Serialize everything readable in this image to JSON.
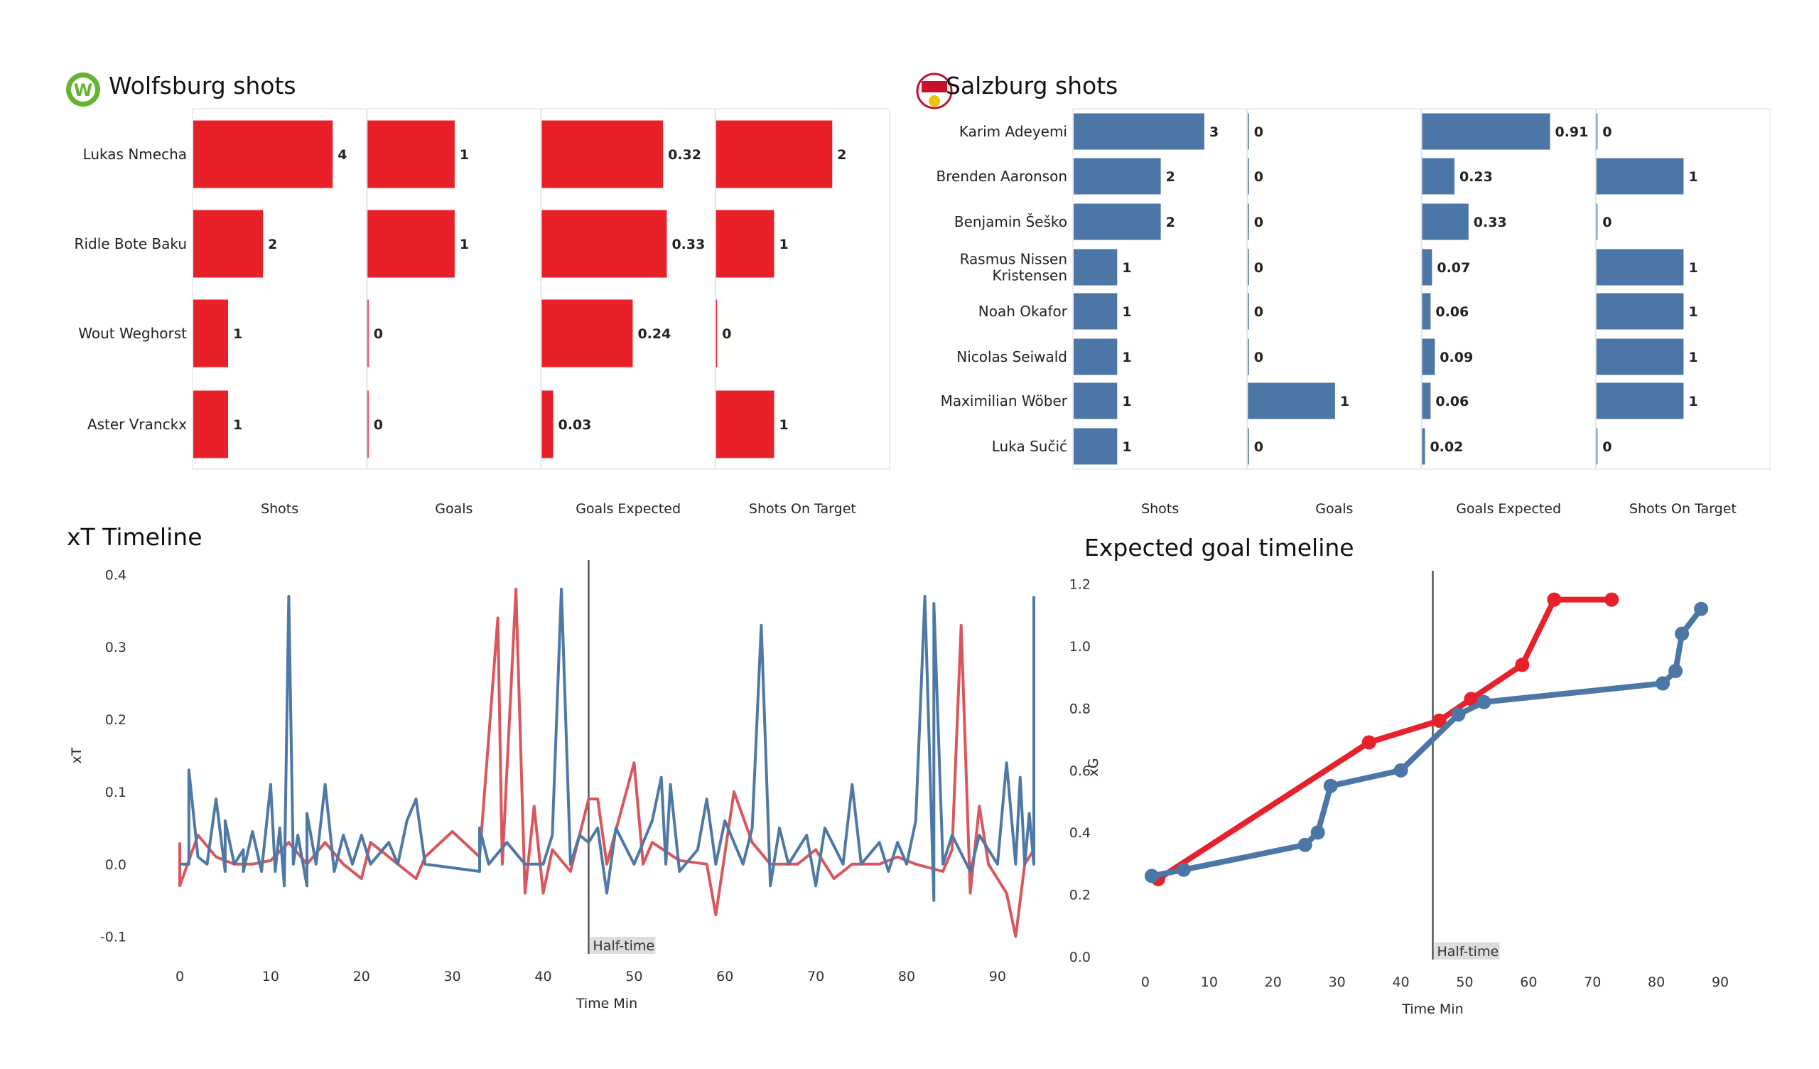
{
  "colors": {
    "wolfsburg": "#e8202a",
    "salzburg": "#4b76a6",
    "xt_red": "#d9575c",
    "xt_blue": "#4e78a6",
    "halftime_line": "#555555",
    "halftime_box": "#dddddd"
  },
  "icons": {
    "wolfsburg_logo": "wolfsburg-crest-icon",
    "salzburg_logo": "salzburg-crest-icon"
  },
  "chart_data": [
    {
      "type": "bar",
      "title": "Wolfsburg shots",
      "categories": [
        "Lukas Nmecha",
        "Ridle Bote Baku",
        "Wout Weghorst",
        "Aster Vranckx"
      ],
      "columns": [
        {
          "label": "Shots",
          "values": [
            4,
            2,
            1,
            1
          ],
          "xlim": [
            0,
            5
          ]
        },
        {
          "label": "Goals",
          "values": [
            1,
            1,
            0,
            0
          ],
          "xlim": [
            0,
            2
          ]
        },
        {
          "label": "Goals Expected",
          "values": [
            0.32,
            0.33,
            0.24,
            0.03
          ],
          "xlim": [
            0,
            0.46
          ]
        },
        {
          "label": "Shots On Target",
          "values": [
            2,
            1,
            0,
            1
          ],
          "xlim": [
            0,
            3
          ]
        }
      ],
      "value_labels": [
        [
          "4",
          "2",
          "1",
          "1"
        ],
        [
          "1",
          "1",
          "0",
          "0"
        ],
        [
          "0.32",
          "0.33",
          "0.24",
          "0.03"
        ],
        [
          "2",
          "1",
          "0",
          "1"
        ]
      ]
    },
    {
      "type": "bar",
      "title": "Salzburg shots",
      "categories": [
        "Karim Adeyemi",
        "Brenden  Aaronson",
        "Benjamin Šeško",
        "Rasmus Nissen\nKristensen",
        "Noah Okafor",
        "Nicolas Seiwald",
        "Maximilian Wöber",
        "Luka Sučić"
      ],
      "columns": [
        {
          "label": "Shots",
          "values": [
            3,
            2,
            2,
            1,
            1,
            1,
            1,
            1
          ],
          "xlim": [
            0,
            4
          ]
        },
        {
          "label": "Goals",
          "values": [
            0,
            0,
            0,
            0,
            0,
            0,
            1,
            0
          ],
          "xlim": [
            0,
            2
          ]
        },
        {
          "label": "Goals Expected",
          "values": [
            0.91,
            0.23,
            0.33,
            0.07,
            0.06,
            0.09,
            0.06,
            0.02
          ],
          "xlim": [
            0,
            1.24
          ]
        },
        {
          "label": "Shots On Target",
          "values": [
            0,
            1,
            0,
            1,
            1,
            1,
            1,
            0
          ],
          "xlim": [
            0,
            2
          ]
        }
      ],
      "value_labels": [
        [
          "3",
          "2",
          "2",
          "1",
          "1",
          "1",
          "1",
          "1"
        ],
        [
          "0",
          "0",
          "0",
          "0",
          "0",
          "0",
          "1",
          "0"
        ],
        [
          "0.91",
          "0.23",
          "0.33",
          "0.07",
          "0.06",
          "0.09",
          "0.06",
          "0.02"
        ],
        [
          "0",
          "1",
          "0",
          "1",
          "1",
          "1",
          "1",
          "0"
        ]
      ]
    },
    {
      "type": "line",
      "title": "xT Timeline",
      "xlabel": "Time Min",
      "ylabel": "xT",
      "xlim": [
        0,
        94
      ],
      "ylim": [
        -0.12,
        0.42
      ],
      "xticks": [
        "0",
        "10",
        "20",
        "30",
        "40",
        "50",
        "60",
        "70",
        "80",
        "90"
      ],
      "yticks": [
        "0.4",
        "0.3",
        "0.2",
        "0.1",
        "0.0",
        "-0.1"
      ],
      "annotation": {
        "x": 45,
        "label": "Half-time"
      },
      "series": [
        {
          "team": "wolfsburg",
          "points": [
            [
              0,
              0.03
            ],
            [
              0,
              -0.03
            ],
            [
              2,
              0.04
            ],
            [
              4,
              0.01
            ],
            [
              6,
              0.0
            ],
            [
              8,
              0.0
            ],
            [
              10,
              0.005
            ],
            [
              12,
              0.03
            ],
            [
              14,
              0.0
            ],
            [
              16,
              0.03
            ],
            [
              18,
              0.0
            ],
            [
              20,
              -0.02
            ],
            [
              21,
              0.03
            ],
            [
              23,
              0.01
            ],
            [
              26,
              -0.02
            ],
            [
              27,
              0.01
            ],
            [
              30,
              0.045
            ],
            [
              33,
              0.01
            ],
            [
              35,
              0.34
            ],
            [
              35.5,
              0.0
            ],
            [
              37,
              0.38
            ],
            [
              38,
              -0.04
            ],
            [
              39,
              0.08
            ],
            [
              40,
              -0.04
            ],
            [
              41,
              0.02
            ],
            [
              43,
              -0.01
            ],
            [
              45,
              0.09
            ],
            [
              46,
              0.09
            ],
            [
              47,
              0.0
            ],
            [
              50,
              0.14
            ],
            [
              51,
              0.0
            ],
            [
              52,
              0.03
            ],
            [
              55,
              0.005
            ],
            [
              58,
              0.0
            ],
            [
              59,
              -0.07
            ],
            [
              61,
              0.1
            ],
            [
              63,
              0.03
            ],
            [
              65,
              0.0
            ],
            [
              68,
              0.0
            ],
            [
              70,
              0.02
            ],
            [
              72,
              -0.02
            ],
            [
              74,
              0.0
            ],
            [
              77,
              0.0
            ],
            [
              79,
              0.01
            ],
            [
              81,
              0.0
            ],
            [
              84,
              -0.01
            ],
            [
              85,
              0.02
            ],
            [
              86,
              0.33
            ],
            [
              87,
              -0.04
            ],
            [
              88,
              0.08
            ],
            [
              89,
              0.0
            ],
            [
              91,
              -0.04
            ],
            [
              92,
              -0.1
            ],
            [
              93,
              0.0
            ],
            [
              94,
              0.02
            ]
          ]
        },
        {
          "team": "salzburg",
          "points": [
            [
              0,
              0.0
            ],
            [
              1,
              0.0
            ],
            [
              1,
              0.13
            ],
            [
              2,
              0.01
            ],
            [
              3,
              0.0
            ],
            [
              4,
              0.09
            ],
            [
              5,
              -0.01
            ],
            [
              5,
              0.06
            ],
            [
              6,
              0.0
            ],
            [
              7,
              0.02
            ],
            [
              7,
              -0.01
            ],
            [
              8,
              0.045
            ],
            [
              9,
              -0.01
            ],
            [
              10,
              0.11
            ],
            [
              10.5,
              -0.01
            ],
            [
              11,
              0.05
            ],
            [
              11.5,
              -0.03
            ],
            [
              12,
              0.37
            ],
            [
              12.5,
              0.0
            ],
            [
              13,
              0.04
            ],
            [
              14,
              -0.03
            ],
            [
              14,
              0.07
            ],
            [
              15,
              0.0
            ],
            [
              16,
              0.11
            ],
            [
              17,
              -0.01
            ],
            [
              18,
              0.04
            ],
            [
              19,
              0.0
            ],
            [
              20,
              0.04
            ],
            [
              21,
              0.0
            ],
            [
              23,
              0.03
            ],
            [
              24,
              0.0
            ],
            [
              25,
              0.06
            ],
            [
              26,
              0.09
            ],
            [
              27,
              0.0
            ],
            [
              33,
              -0.01
            ],
            [
              33,
              0.05
            ],
            [
              34,
              0.0
            ],
            [
              36,
              0.03
            ],
            [
              38,
              0.0
            ],
            [
              40,
              0.0
            ],
            [
              41,
              0.04
            ],
            [
              42,
              0.38
            ],
            [
              43,
              0.0
            ],
            [
              44,
              0.04
            ],
            [
              45,
              0.03
            ],
            [
              46,
              0.05
            ],
            [
              47,
              -0.04
            ],
            [
              48,
              0.05
            ],
            [
              50,
              0.0
            ],
            [
              52,
              0.06
            ],
            [
              53,
              0.12
            ],
            [
              53.5,
              0.0
            ],
            [
              54,
              0.11
            ],
            [
              55,
              -0.01
            ],
            [
              57,
              0.02
            ],
            [
              58,
              0.09
            ],
            [
              59,
              0.0
            ],
            [
              60,
              0.06
            ],
            [
              62,
              0.0
            ],
            [
              63,
              0.05
            ],
            [
              64,
              0.33
            ],
            [
              65,
              -0.03
            ],
            [
              66,
              0.05
            ],
            [
              67,
              0.0
            ],
            [
              69,
              0.04
            ],
            [
              70,
              -0.03
            ],
            [
              71,
              0.05
            ],
            [
              73,
              0.0
            ],
            [
              74,
              0.11
            ],
            [
              75,
              0.0
            ],
            [
              77,
              0.03
            ],
            [
              78,
              -0.01
            ],
            [
              79,
              0.03
            ],
            [
              80,
              0.0
            ],
            [
              81,
              0.06
            ],
            [
              82,
              0.37
            ],
            [
              83,
              -0.05
            ],
            [
              83,
              0.36
            ],
            [
              84,
              0.0
            ],
            [
              85,
              0.04
            ],
            [
              87,
              -0.01
            ],
            [
              88,
              0.04
            ],
            [
              90,
              0.0
            ],
            [
              91,
              0.14
            ],
            [
              92,
              0.0
            ],
            [
              92.5,
              0.12
            ],
            [
              93,
              0.0
            ],
            [
              93.5,
              0.07
            ],
            [
              94,
              0.0
            ],
            [
              94,
              0.37
            ]
          ]
        }
      ]
    },
    {
      "type": "line",
      "title": "Expected goal timeline",
      "xlabel": "Time Min",
      "ylabel": "xG",
      "xlim": [
        -3,
        93
      ],
      "ylim": [
        0,
        1.22
      ],
      "xticks": [
        "0",
        "10",
        "20",
        "30",
        "40",
        "50",
        "60",
        "70",
        "80",
        "90"
      ],
      "yticks": [
        "1.2",
        "1.0",
        "0.8",
        "0.6",
        "0.4",
        "0.2",
        "0.0"
      ],
      "annotation": {
        "x": 45,
        "label": "Half-time"
      },
      "series": [
        {
          "team": "wolfsburg",
          "points": [
            [
              2,
              0.25
            ],
            [
              35,
              0.69
            ],
            [
              46,
              0.76
            ],
            [
              51,
              0.83
            ],
            [
              59,
              0.94
            ],
            [
              64,
              1.15
            ],
            [
              73,
              1.15
            ]
          ]
        },
        {
          "team": "salzburg",
          "points": [
            [
              1,
              0.26
            ],
            [
              6,
              0.28
            ],
            [
              25,
              0.36
            ],
            [
              27,
              0.4
            ],
            [
              29,
              0.55
            ],
            [
              40,
              0.6
            ],
            [
              49,
              0.78
            ],
            [
              53,
              0.82
            ],
            [
              81,
              0.88
            ],
            [
              83,
              0.92
            ],
            [
              84,
              1.04
            ],
            [
              87,
              1.12
            ]
          ]
        }
      ]
    }
  ]
}
